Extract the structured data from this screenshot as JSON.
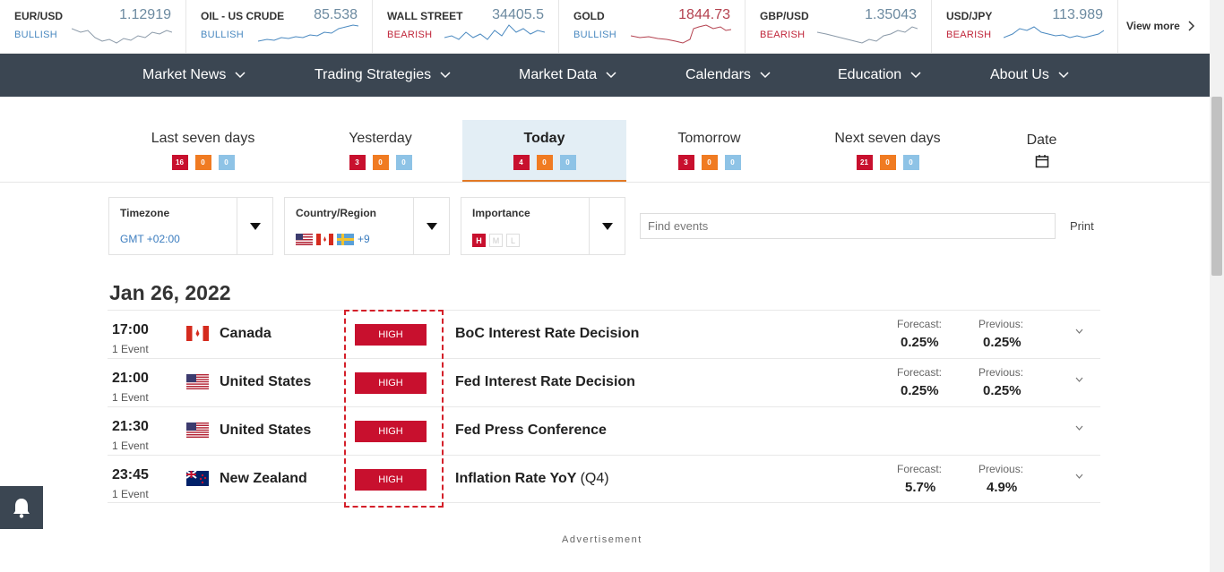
{
  "ticker": [
    {
      "name": "EUR/USD",
      "price": "1.12919",
      "sentiment": "BULLISH",
      "dir": "up"
    },
    {
      "name": "OIL - US CRUDE",
      "price": "85.538",
      "sentiment": "BULLISH",
      "dir": "up"
    },
    {
      "name": "WALL STREET",
      "price": "34405.5",
      "sentiment": "BEARISH",
      "dir": "down"
    },
    {
      "name": "GOLD",
      "price": "1844.73",
      "sentiment": "BULLISH",
      "dir": "up"
    },
    {
      "name": "GBP/USD",
      "price": "1.35043",
      "sentiment": "BEARISH",
      "dir": "down"
    },
    {
      "name": "USD/JPY",
      "price": "113.989",
      "sentiment": "BEARISH",
      "dir": "down"
    }
  ],
  "view_more": "View more",
  "nav": [
    "Market News",
    "Trading Strategies",
    "Market Data",
    "Calendars",
    "Education",
    "About Us"
  ],
  "tabs": [
    {
      "label": "Last seven days",
      "high": "16",
      "medium": "0",
      "low": "0"
    },
    {
      "label": "Yesterday",
      "high": "3",
      "medium": "0",
      "low": "0"
    },
    {
      "label": "Today",
      "high": "4",
      "medium": "0",
      "low": "0",
      "active": true
    },
    {
      "label": "Tomorrow",
      "high": "3",
      "medium": "0",
      "low": "0"
    },
    {
      "label": "Next seven days",
      "high": "21",
      "medium": "0",
      "low": "0"
    },
    {
      "label": "Date"
    }
  ],
  "filters": {
    "timezone_label": "Timezone",
    "timezone_value": "GMT +02:00",
    "country_label": "Country/Region",
    "country_extra": "+9",
    "importance_label": "Importance",
    "importance_levels": [
      "H",
      "M",
      "L"
    ]
  },
  "search": {
    "placeholder": "Find events"
  },
  "print": "Print",
  "date_heading": "Jan 26, 2022",
  "events": [
    {
      "time": "17:00",
      "count": "1 Event",
      "country": "Canada",
      "flag": "ca",
      "importance": "HIGH",
      "name": "BoC Interest Rate Decision",
      "period": "",
      "forecast_label": "Forecast:",
      "forecast": "0.25%",
      "previous_label": "Previous:",
      "previous": "0.25%"
    },
    {
      "time": "21:00",
      "count": "1 Event",
      "country": "United States",
      "flag": "us",
      "importance": "HIGH",
      "name": "Fed Interest Rate Decision",
      "period": "",
      "forecast_label": "Forecast:",
      "forecast": "0.25%",
      "previous_label": "Previous:",
      "previous": "0.25%"
    },
    {
      "time": "21:30",
      "count": "1 Event",
      "country": "United States",
      "flag": "us",
      "importance": "HIGH",
      "name": "Fed Press Conference",
      "period": "",
      "forecast_label": "",
      "forecast": "",
      "previous_label": "",
      "previous": ""
    },
    {
      "time": "23:45",
      "count": "1 Event",
      "country": "New Zealand",
      "flag": "nz",
      "importance": "HIGH",
      "name": "Inflation Rate YoY",
      "period": "(Q4)",
      "forecast_label": "Forecast:",
      "forecast": "5.7%",
      "previous_label": "Previous:",
      "previous": "4.9%"
    }
  ],
  "advertisement": "Advertisement",
  "colors": {
    "nav_bg": "#3b4652",
    "high": "#c8102e",
    "medium": "#f07b22",
    "low": "#8ec3e6",
    "active_tab": "#e3eef5"
  }
}
